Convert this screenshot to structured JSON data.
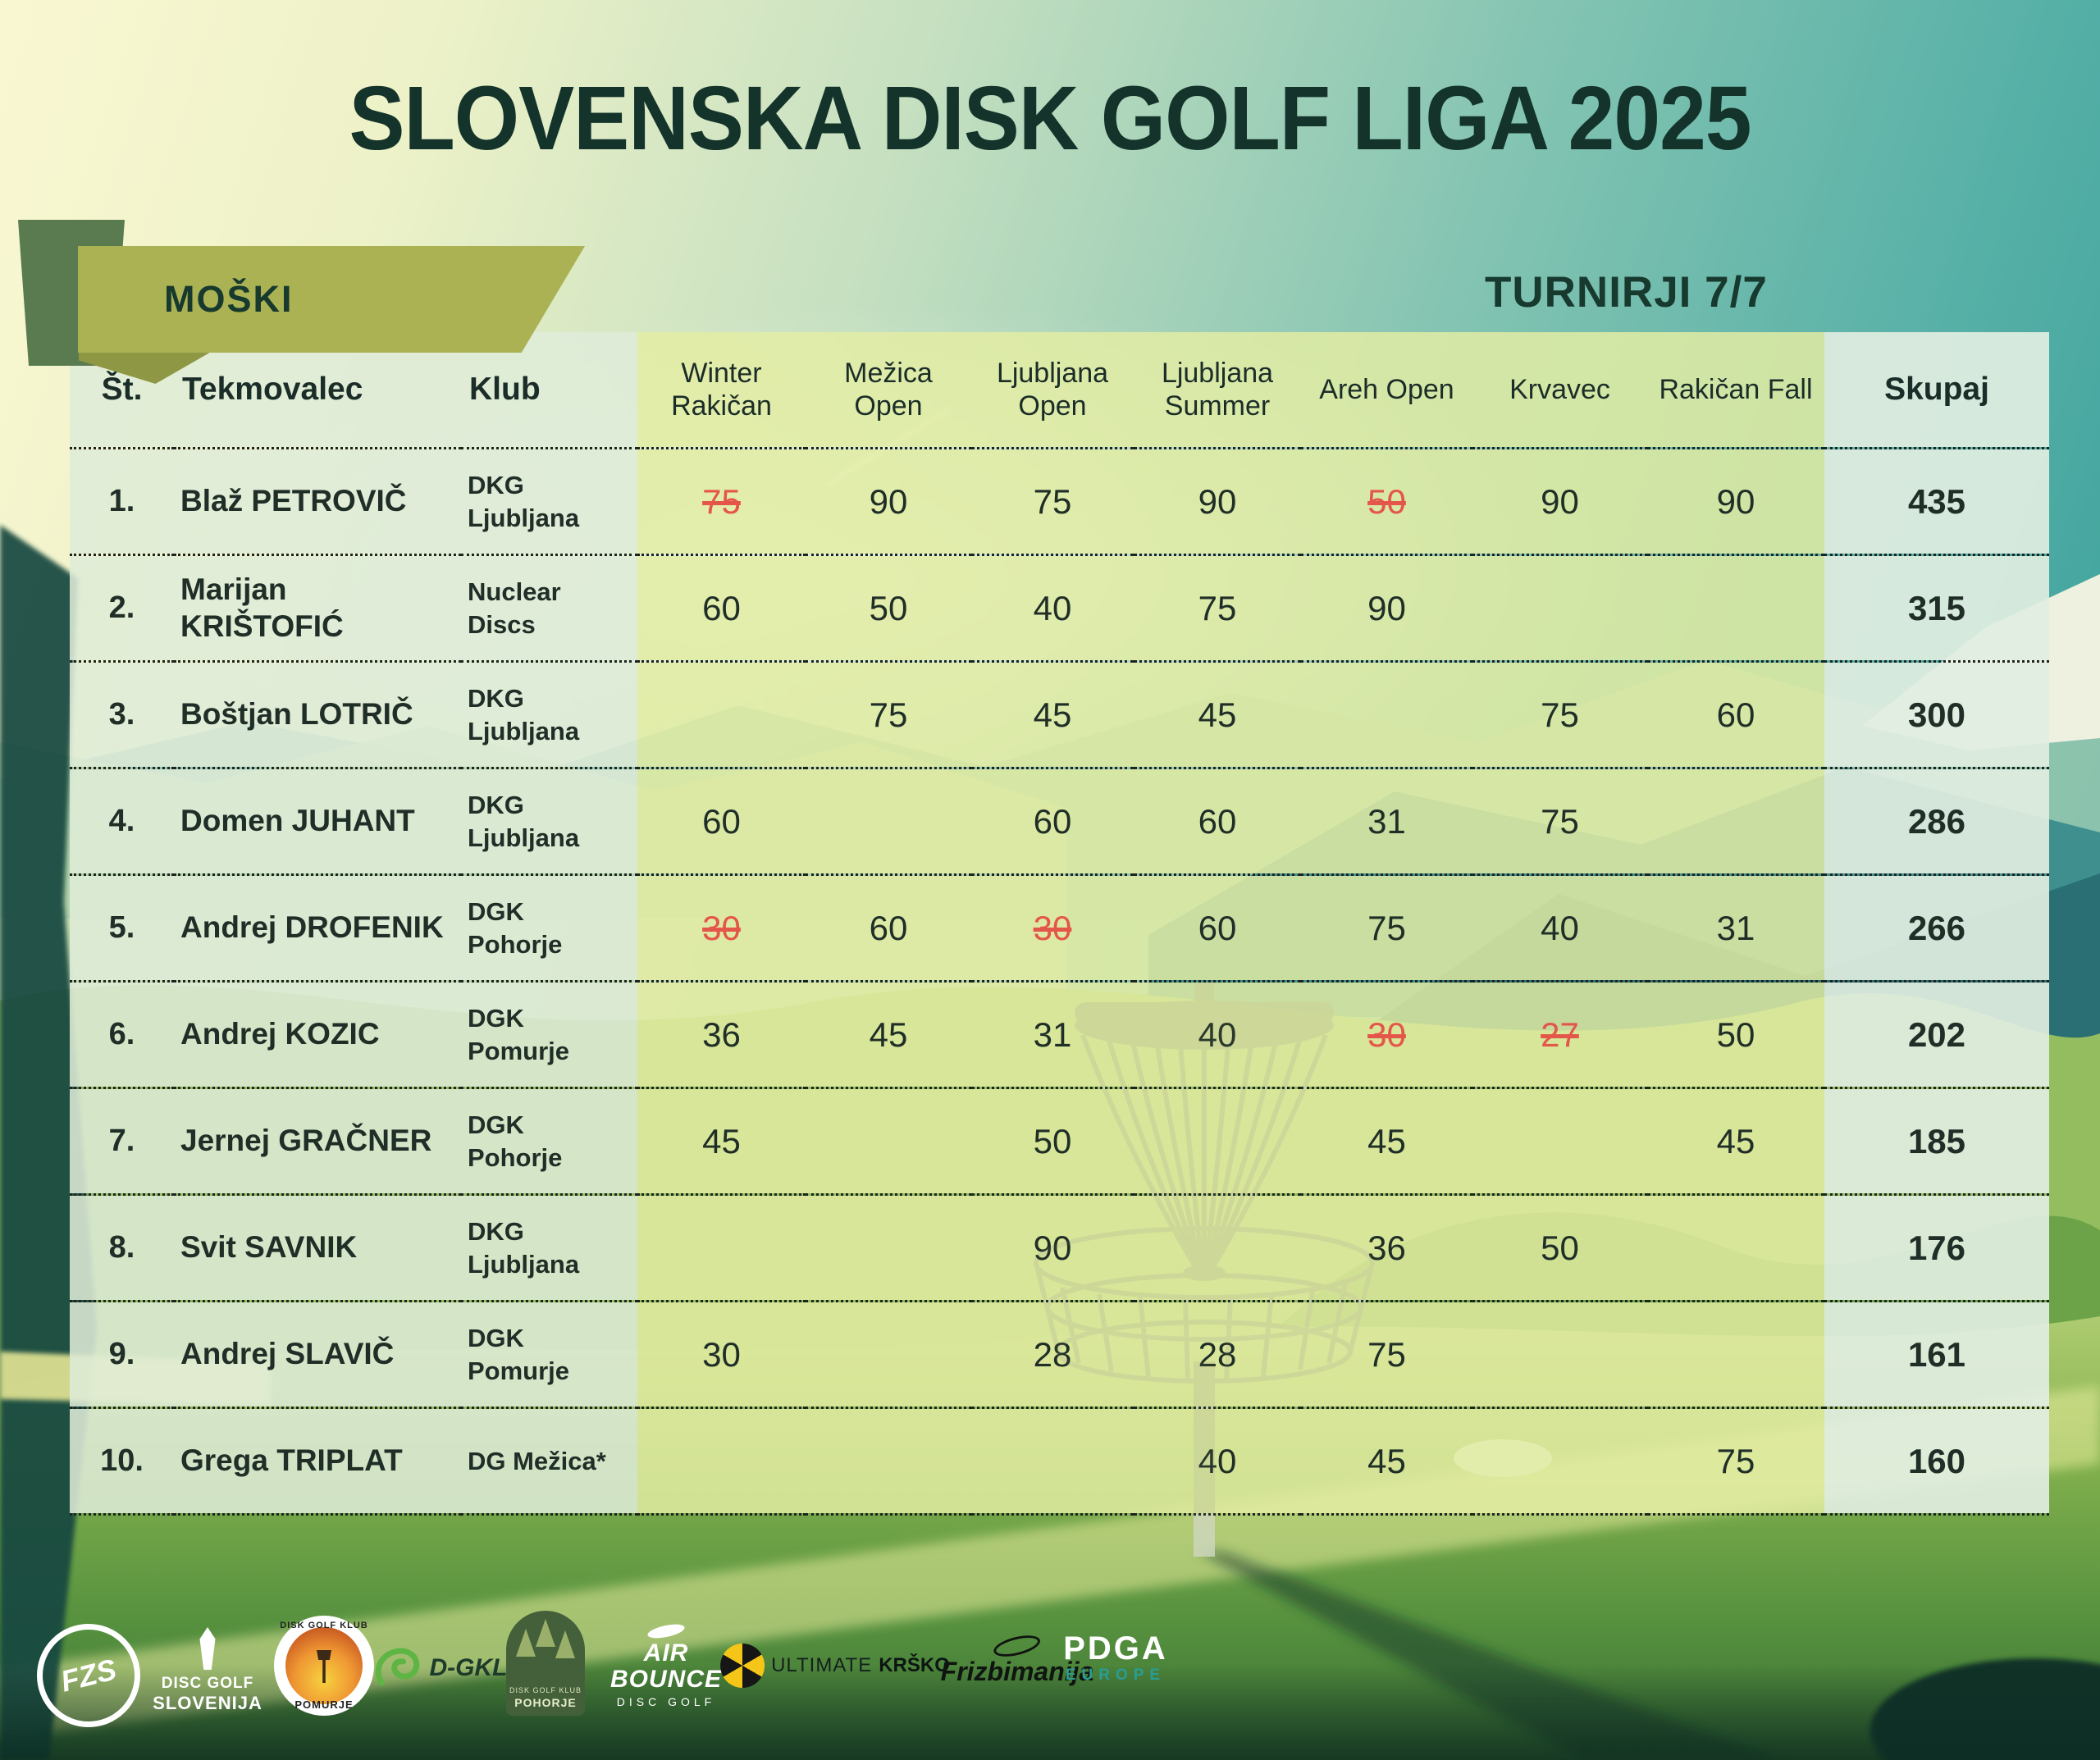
{
  "header": {
    "title": "SLOVENSKA DISK GOLF LIGA 2025",
    "category_label": "MOŠKI",
    "tournaments_label": "TURNIRJI 7/7"
  },
  "chart_data": {
    "type": "table",
    "columns": [
      "Št.",
      "Tekmovalec",
      "Klub",
      "Winter Rakičan",
      "Mežica Open",
      "Ljubljana Open",
      "Ljubljana Summer",
      "Areh Open",
      "Krvavec",
      "Rakičan Fall",
      "Skupaj"
    ],
    "rows": [
      {
        "rank": "1.",
        "player": "Blaž PETROVIČ",
        "club": "DKG Ljubljana",
        "scores": [
          {
            "v": 75,
            "struck": true
          },
          90,
          75,
          90,
          {
            "v": 50,
            "struck": true
          },
          90,
          90
        ],
        "total": 435
      },
      {
        "rank": "2.",
        "player": "Marijan KRIŠTOFIĆ",
        "club": "Nuclear Discs",
        "scores": [
          60,
          50,
          40,
          75,
          90,
          null,
          null
        ],
        "total": 315
      },
      {
        "rank": "3.",
        "player": "Boštjan LOTRIČ",
        "club": "DKG Ljubljana",
        "scores": [
          null,
          75,
          45,
          45,
          null,
          75,
          60
        ],
        "total": 300
      },
      {
        "rank": "4.",
        "player": "Domen JUHANT",
        "club": "DKG Ljubljana",
        "scores": [
          60,
          null,
          60,
          60,
          31,
          75,
          null
        ],
        "total": 286
      },
      {
        "rank": "5.",
        "player": "Andrej DROFENIK",
        "club": "DGK Pohorje",
        "scores": [
          {
            "v": 30,
            "struck": true
          },
          60,
          {
            "v": 30,
            "struck": true
          },
          60,
          75,
          40,
          31
        ],
        "total": 266
      },
      {
        "rank": "6.",
        "player": "Andrej KOZIC",
        "club": "DGK Pomurje",
        "scores": [
          36,
          45,
          31,
          40,
          {
            "v": 30,
            "struck": true
          },
          {
            "v": 27,
            "struck": true
          },
          50
        ],
        "total": 202
      },
      {
        "rank": "7.",
        "player": "Jernej GRAČNER",
        "club": "DGK Pohorje",
        "scores": [
          45,
          null,
          50,
          null,
          45,
          null,
          45
        ],
        "total": 185
      },
      {
        "rank": "8.",
        "player": "Svit SAVNIK",
        "club": "DKG Ljubljana",
        "scores": [
          null,
          null,
          90,
          null,
          36,
          50,
          null
        ],
        "total": 176
      },
      {
        "rank": "9.",
        "player": "Andrej SLAVIČ",
        "club": "DGK Pomurje",
        "scores": [
          30,
          null,
          28,
          28,
          75,
          null,
          null
        ],
        "total": 161
      },
      {
        "rank": "10.",
        "player": "Grega TRIPLAT",
        "club": "DG Mežica*",
        "scores": [
          null,
          null,
          null,
          40,
          45,
          null,
          75
        ],
        "total": 160
      }
    ]
  },
  "footer": {
    "logos": [
      {
        "name": "fzs",
        "label": "FZS"
      },
      {
        "name": "disc-golf-slovenija",
        "label": "DISC GOLF",
        "sub": "SLOVENIJA"
      },
      {
        "name": "dgk-pomurje",
        "label": "DISK GOLF KLUB",
        "sub": "POMURJE"
      },
      {
        "name": "dgkl",
        "label": "D-GKL"
      },
      {
        "name": "dgk-pohorje",
        "label": "POHORJE",
        "sub": "DISK GOLF KLUB"
      },
      {
        "name": "air-bounce",
        "label": "AIR BOUNCE",
        "sub": "DISC GOLF"
      },
      {
        "name": "ultimate-krsko",
        "label": "ULTIMATE",
        "sub": "KRŠKO"
      },
      {
        "name": "frizbimanija",
        "label": "Frizbimanija"
      },
      {
        "name": "pdga-europe",
        "label": "PDGA",
        "sub": "EUROPE"
      }
    ]
  },
  "colors": {
    "title_text": "#14332b",
    "banner_olive": "#aab254",
    "banner_tab_green": "#5a7b50",
    "info_cell_bg": "#dfecd8",
    "score_cell_bg": "#e4eda3",
    "total_cell_bg": "#e1eee1",
    "struck_red": "#e4564a",
    "sky_teal": "#3aa09b",
    "sky_cream": "#f9f7d2",
    "pdga_teal": "#2a9d96"
  }
}
